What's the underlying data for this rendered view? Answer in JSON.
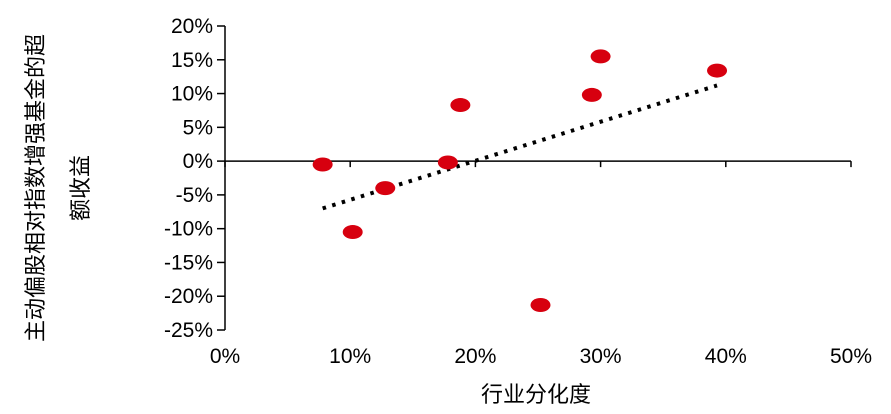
{
  "chart_data": {
    "type": "scatter",
    "title": "",
    "xlabel": "行业分化度",
    "ylabel_lines": [
      "主动偏股相对指数增强基金的超",
      "额收益"
    ],
    "x_ticks": [
      "0%",
      "10%",
      "20%",
      "30%",
      "40%",
      "50%"
    ],
    "y_ticks": [
      "20%",
      "15%",
      "10%",
      "5%",
      "0%",
      "-5%",
      "-10%",
      "-15%",
      "-20%",
      "-25%"
    ],
    "xlim": [
      0,
      50
    ],
    "ylim": [
      -25,
      20
    ],
    "grid": false,
    "legend": "none",
    "point_color": "#d7000f",
    "trend_color": "#000000",
    "points": [
      {
        "x": 7.8,
        "y": -0.5
      },
      {
        "x": 10.2,
        "y": -10.5
      },
      {
        "x": 12.8,
        "y": -4.0
      },
      {
        "x": 17.8,
        "y": -0.2
      },
      {
        "x": 18.8,
        "y": 8.3
      },
      {
        "x": 25.2,
        "y": -21.3
      },
      {
        "x": 29.3,
        "y": 9.8
      },
      {
        "x": 30.0,
        "y": 15.5
      },
      {
        "x": 39.3,
        "y": 13.4
      }
    ],
    "trendline": {
      "x": [
        7.8,
        39.3
      ],
      "y": [
        -7.0,
        11.2
      ]
    }
  }
}
